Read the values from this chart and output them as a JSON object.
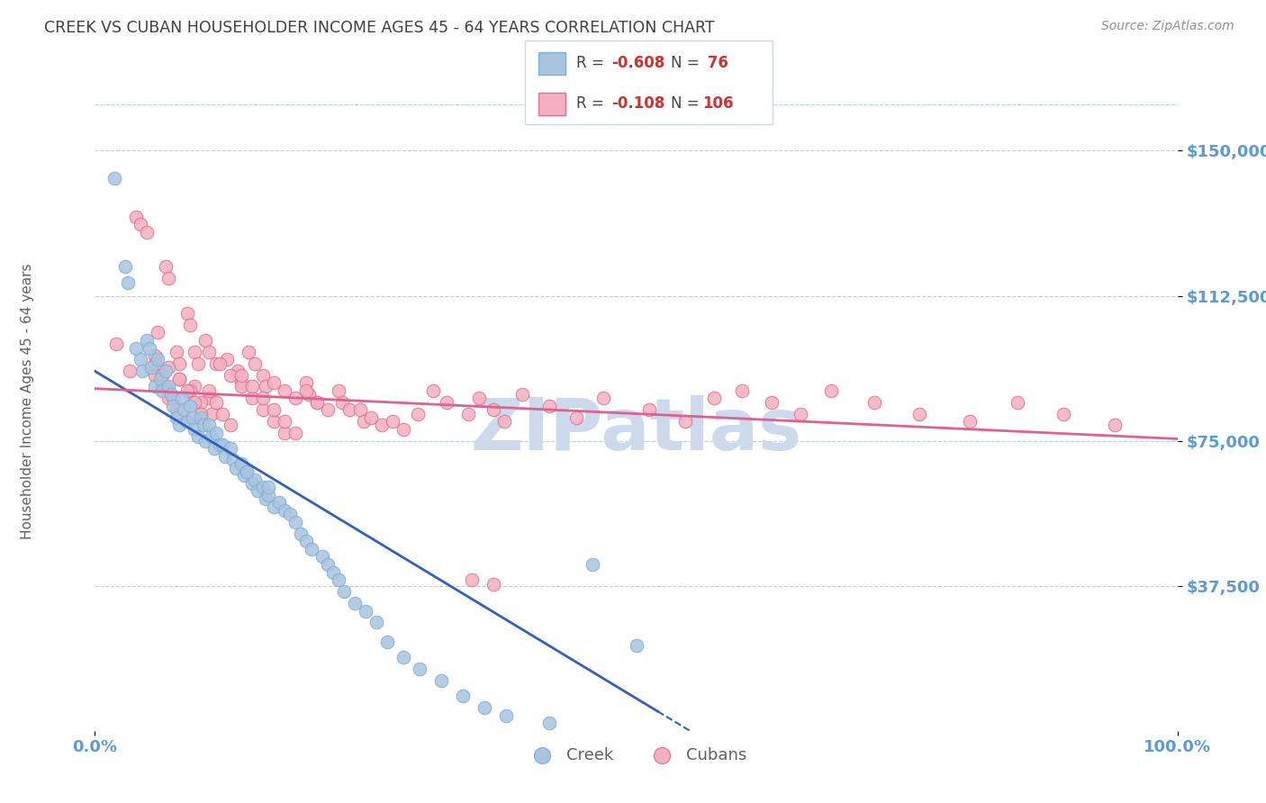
{
  "title": "CREEK VS CUBAN HOUSEHOLDER INCOME AGES 45 - 64 YEARS CORRELATION CHART",
  "source": "Source: ZipAtlas.com",
  "ylabel": "Householder Income Ages 45 - 64 years",
  "ytick_labels": [
    "$37,500",
    "$75,000",
    "$112,500",
    "$150,000"
  ],
  "ytick_values": [
    37500,
    75000,
    112500,
    150000
  ],
  "ymin": 0,
  "ymax": 162000,
  "xmin": 0.0,
  "xmax": 1.0,
  "creek_color": "#aac4e0",
  "cuban_color": "#f5b0c0",
  "creek_edge": "#7bafd4",
  "cuban_edge": "#e07090",
  "trendline_creek_color": "#3060c0",
  "trendline_cuban_color": "#e06090",
  "title_color": "#404040",
  "axis_label_color": "#5b9bd5",
  "watermark_color": "#ccdaec",
  "grid_color": "#b8cfe0",
  "creek_x": [
    0.018,
    0.028,
    0.03,
    0.038,
    0.042,
    0.044,
    0.048,
    0.05,
    0.052,
    0.055,
    0.058,
    0.06,
    0.062,
    0.065,
    0.068,
    0.07,
    0.072,
    0.075,
    0.078,
    0.08,
    0.082,
    0.085,
    0.088,
    0.09,
    0.092,
    0.095,
    0.098,
    0.1,
    0.102,
    0.105,
    0.108,
    0.11,
    0.112,
    0.115,
    0.118,
    0.12,
    0.125,
    0.128,
    0.13,
    0.135,
    0.138,
    0.14,
    0.145,
    0.148,
    0.15,
    0.155,
    0.158,
    0.16,
    0.165,
    0.17,
    0.175,
    0.18,
    0.185,
    0.19,
    0.195,
    0.2,
    0.21,
    0.215,
    0.22,
    0.225,
    0.23,
    0.24,
    0.25,
    0.26,
    0.27,
    0.285,
    0.3,
    0.32,
    0.34,
    0.36,
    0.38,
    0.42,
    0.46,
    0.5,
    0.14,
    0.16
  ],
  "creek_y": [
    143000,
    120000,
    116000,
    99000,
    96000,
    93000,
    101000,
    99000,
    94000,
    89000,
    96000,
    91000,
    88000,
    93000,
    89000,
    87000,
    84000,
    81000,
    79000,
    86000,
    83000,
    80000,
    84000,
    81000,
    78000,
    76000,
    81000,
    79000,
    75000,
    79000,
    76000,
    73000,
    77000,
    74000,
    74000,
    71000,
    73000,
    70000,
    68000,
    69000,
    66000,
    67000,
    64000,
    65000,
    62000,
    63000,
    60000,
    61000,
    58000,
    59000,
    57000,
    56000,
    54000,
    51000,
    49000,
    47000,
    45000,
    43000,
    41000,
    39000,
    36000,
    33000,
    31000,
    28000,
    23000,
    19000,
    16000,
    13000,
    9000,
    6000,
    4000,
    2000,
    43000,
    22000,
    67000,
    63000
  ],
  "cuban_x": [
    0.02,
    0.032,
    0.038,
    0.042,
    0.048,
    0.058,
    0.065,
    0.068,
    0.075,
    0.078,
    0.085,
    0.088,
    0.092,
    0.095,
    0.102,
    0.105,
    0.112,
    0.122,
    0.132,
    0.135,
    0.142,
    0.148,
    0.155,
    0.158,
    0.165,
    0.175,
    0.185,
    0.195,
    0.198,
    0.205,
    0.215,
    0.225,
    0.228,
    0.235,
    0.245,
    0.248,
    0.255,
    0.265,
    0.275,
    0.285,
    0.055,
    0.062,
    0.068,
    0.075,
    0.085,
    0.092,
    0.105,
    0.115,
    0.125,
    0.135,
    0.145,
    0.155,
    0.165,
    0.175,
    0.055,
    0.068,
    0.078,
    0.088,
    0.098,
    0.108,
    0.055,
    0.062,
    0.065,
    0.072,
    0.078,
    0.085,
    0.092,
    0.098,
    0.105,
    0.112,
    0.118,
    0.125,
    0.135,
    0.145,
    0.155,
    0.165,
    0.175,
    0.185,
    0.195,
    0.205,
    0.298,
    0.312,
    0.325,
    0.345,
    0.355,
    0.368,
    0.378,
    0.395,
    0.42,
    0.445,
    0.47,
    0.512,
    0.545,
    0.572,
    0.598,
    0.625,
    0.652,
    0.68,
    0.72,
    0.762,
    0.808,
    0.852,
    0.895,
    0.942,
    0.348,
    0.368
  ],
  "cuban_y": [
    100000,
    93000,
    133000,
    131000,
    129000,
    103000,
    120000,
    117000,
    98000,
    95000,
    108000,
    105000,
    98000,
    95000,
    101000,
    98000,
    95000,
    96000,
    93000,
    90000,
    98000,
    95000,
    92000,
    89000,
    90000,
    88000,
    86000,
    90000,
    87000,
    85000,
    83000,
    88000,
    85000,
    83000,
    83000,
    80000,
    81000,
    79000,
    80000,
    78000,
    92000,
    89000,
    86000,
    83000,
    80000,
    89000,
    86000,
    95000,
    92000,
    89000,
    86000,
    83000,
    80000,
    77000,
    97000,
    94000,
    91000,
    88000,
    85000,
    82000,
    95000,
    92000,
    89000,
    86000,
    91000,
    88000,
    85000,
    82000,
    88000,
    85000,
    82000,
    79000,
    92000,
    89000,
    86000,
    83000,
    80000,
    77000,
    88000,
    85000,
    82000,
    88000,
    85000,
    82000,
    86000,
    83000,
    80000,
    87000,
    84000,
    81000,
    86000,
    83000,
    80000,
    86000,
    88000,
    85000,
    82000,
    88000,
    85000,
    82000,
    80000,
    85000,
    82000,
    79000,
    39000,
    38000
  ]
}
